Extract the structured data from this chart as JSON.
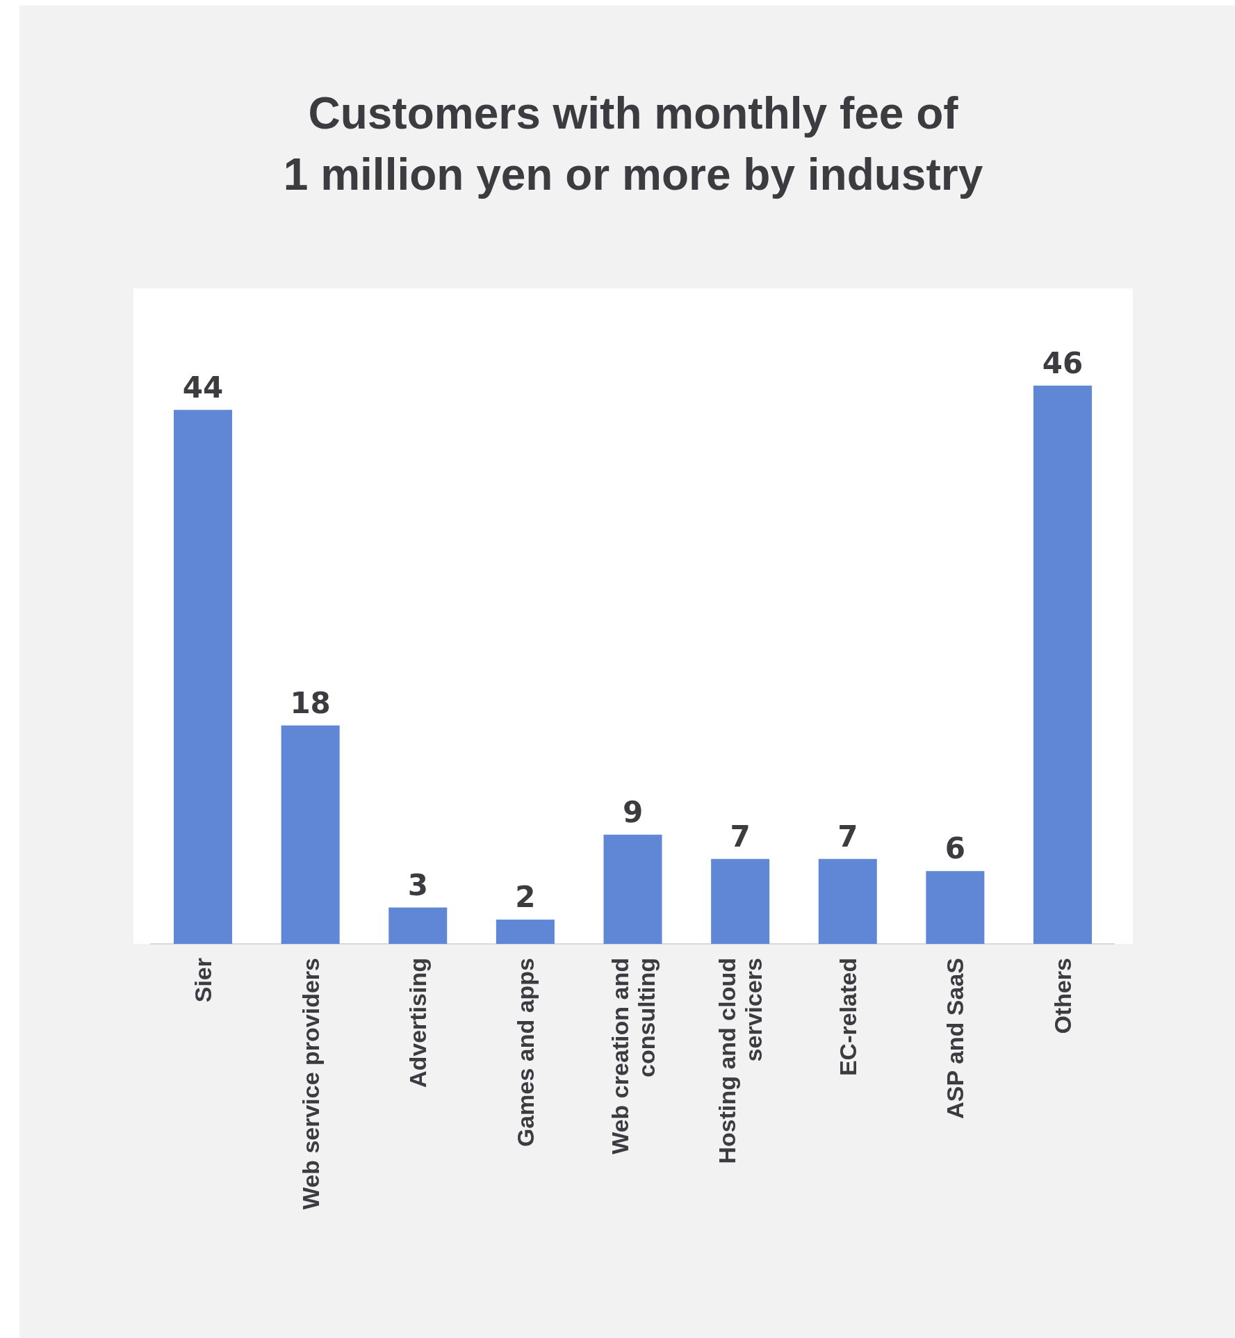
{
  "chart_data": {
    "type": "bar",
    "title": "Customers with monthly fee of\n1 million yen or more by industry",
    "categories": [
      "Sier",
      "Web service providers",
      "Advertising",
      "Games and apps",
      "Web creation and consulting",
      "Hosting and cloud servicers",
      "EC-related",
      "ASP and SaaS",
      "Others"
    ],
    "values": [
      44,
      18,
      3,
      2,
      9,
      7,
      7,
      6,
      46
    ],
    "color": "#5f87d6",
    "data_labels": true
  }
}
